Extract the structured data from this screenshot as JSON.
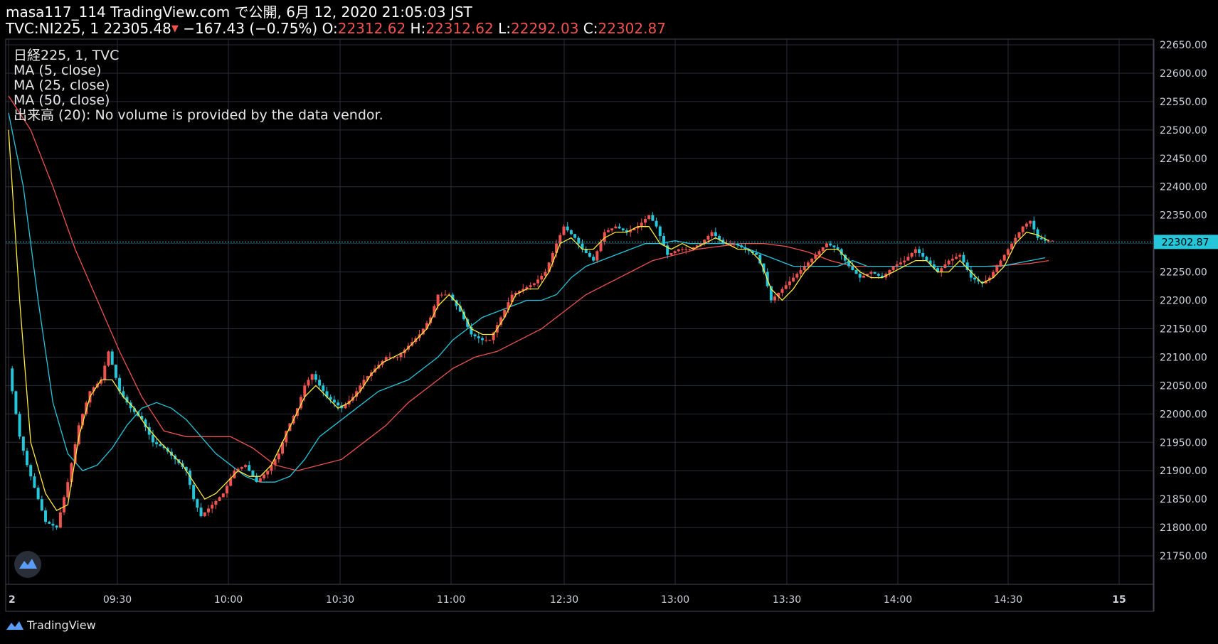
{
  "header": {
    "line1": "masa117_114 TradingView.com で公開, 6月 12, 2020 21:05:03 JST",
    "symbol": "TVC:NI225, 1",
    "price": "22305.48",
    "change": "−167.43 (−0.75%)",
    "o_label": "O:",
    "o_value": "22312.62",
    "h_label": "H:",
    "h_value": "22312.62",
    "l_label": "L:",
    "l_value": "22292.03",
    "c_label": "C:",
    "c_value": "22302.87"
  },
  "legend": {
    "line1": "日経225, 1, TVC",
    "line2": "MA (5, close)",
    "line3": "MA (25, close)",
    "line4": "MA (50, close)",
    "line5": "出来高 (20): No volume is provided by the data vendor."
  },
  "price_label": "22302.87",
  "footer": {
    "brand": "TradingView"
  },
  "colors": {
    "up": "#ef5350",
    "down": "#26c6da",
    "ma5": "#ffeb3b",
    "ma25": "#26c6da",
    "ma50": "#ef5350",
    "grid": "#2a2e39",
    "price_line": "#26c6da"
  },
  "icons": [
    "tradingview-logo-icon",
    "down-arrow-icon"
  ],
  "chart_data": {
    "type": "candlestick",
    "ylim": [
      21700,
      22660
    ],
    "yticks": [
      21750,
      21800,
      21850,
      21900,
      21950,
      22000,
      22050,
      22100,
      22150,
      22200,
      22250,
      22300,
      22350,
      22400,
      22450,
      22500,
      22550,
      22600,
      22650
    ],
    "ytick_labels": [
      "21750.00",
      "21800.00",
      "21850.00",
      "21900.00",
      "21950.00",
      "22000.00",
      "22050.00",
      "22100.00",
      "22150.00",
      "22200.00",
      "22250.00",
      "22300.00",
      "22350.00",
      "22400.00",
      "22450.00",
      "22500.00",
      "22550.00",
      "22600.00",
      "22650.00"
    ],
    "xticks": [
      {
        "label": "2",
        "minutes": 0
      },
      {
        "label": "09:30",
        "minutes": 30
      },
      {
        "label": "10:00",
        "minutes": 60
      },
      {
        "label": "10:30",
        "minutes": 90
      },
      {
        "label": "11:00",
        "minutes": 120
      },
      {
        "label": "12:30",
        "minutes": 150
      },
      {
        "label": "13:00",
        "minutes": 180
      },
      {
        "label": "13:30",
        "minutes": 210
      },
      {
        "label": "14:00",
        "minutes": 240
      },
      {
        "label": "14:30",
        "minutes": 270
      },
      {
        "label": "15",
        "minutes": 300
      }
    ],
    "close_keypoints": [
      [
        0,
        22080
      ],
      [
        3,
        21960
      ],
      [
        5,
        21910
      ],
      [
        7,
        21870
      ],
      [
        10,
        21810
      ],
      [
        13,
        21800
      ],
      [
        16,
        21880
      ],
      [
        19,
        21980
      ],
      [
        22,
        22040
      ],
      [
        25,
        22060
      ],
      [
        27,
        22110
      ],
      [
        30,
        22040
      ],
      [
        33,
        22010
      ],
      [
        36,
        21990
      ],
      [
        39,
        21950
      ],
      [
        42,
        21940
      ],
      [
        45,
        21920
      ],
      [
        48,
        21900
      ],
      [
        50,
        21850
      ],
      [
        52,
        21820
      ],
      [
        55,
        21840
      ],
      [
        58,
        21860
      ],
      [
        61,
        21900
      ],
      [
        64,
        21910
      ],
      [
        67,
        21880
      ],
      [
        70,
        21900
      ],
      [
        73,
        21930
      ],
      [
        75,
        21970
      ],
      [
        78,
        22010
      ],
      [
        80,
        22050
      ],
      [
        82,
        22070
      ],
      [
        84,
        22050
      ],
      [
        86,
        22030
      ],
      [
        88,
        22020
      ],
      [
        90,
        22010
      ],
      [
        93,
        22030
      ],
      [
        96,
        22060
      ],
      [
        99,
        22080
      ],
      [
        102,
        22100
      ],
      [
        105,
        22100
      ],
      [
        108,
        22120
      ],
      [
        111,
        22140
      ],
      [
        114,
        22170
      ],
      [
        116,
        22210
      ],
      [
        119,
        22210
      ],
      [
        122,
        22180
      ],
      [
        125,
        22140
      ],
      [
        128,
        22130
      ],
      [
        130,
        22130
      ],
      [
        133,
        22170
      ],
      [
        136,
        22210
      ],
      [
        139,
        22220
      ],
      [
        142,
        22230
      ],
      [
        145,
        22250
      ],
      [
        148,
        22300
      ],
      [
        150,
        22330
      ],
      [
        153,
        22310
      ],
      [
        155,
        22290
      ],
      [
        158,
        22270
      ],
      [
        161,
        22320
      ],
      [
        164,
        22330
      ],
      [
        167,
        22320
      ],
      [
        170,
        22330
      ],
      [
        173,
        22350
      ],
      [
        175,
        22330
      ],
      [
        178,
        22280
      ],
      [
        181,
        22290
      ],
      [
        184,
        22290
      ],
      [
        187,
        22300
      ],
      [
        190,
        22320
      ],
      [
        193,
        22300
      ],
      [
        196,
        22300
      ],
      [
        199,
        22290
      ],
      [
        202,
        22280
      ],
      [
        204,
        22250
      ],
      [
        206,
        22200
      ],
      [
        209,
        22220
      ],
      [
        212,
        22240
      ],
      [
        215,
        22260
      ],
      [
        218,
        22280
      ],
      [
        221,
        22300
      ],
      [
        224,
        22290
      ],
      [
        227,
        22260
      ],
      [
        230,
        22240
      ],
      [
        233,
        22250
      ],
      [
        236,
        22240
      ],
      [
        239,
        22260
      ],
      [
        242,
        22270
      ],
      [
        245,
        22290
      ],
      [
        248,
        22270
      ],
      [
        251,
        22250
      ],
      [
        254,
        22270
      ],
      [
        257,
        22280
      ],
      [
        260,
        22240
      ],
      [
        263,
        22230
      ],
      [
        265,
        22240
      ],
      [
        268,
        22270
      ],
      [
        271,
        22300
      ],
      [
        274,
        22330
      ],
      [
        276,
        22340
      ],
      [
        278,
        22310
      ],
      [
        280,
        22305
      ]
    ],
    "ma5_keypoints": [
      [
        0,
        22500
      ],
      [
        3,
        22200
      ],
      [
        6,
        21950
      ],
      [
        10,
        21860
      ],
      [
        13,
        21830
      ],
      [
        16,
        21840
      ],
      [
        19,
        21960
      ],
      [
        22,
        22030
      ],
      [
        25,
        22060
      ],
      [
        28,
        22060
      ],
      [
        31,
        22030
      ],
      [
        34,
        22010
      ],
      [
        37,
        21980
      ],
      [
        41,
        21950
      ],
      [
        44,
        21930
      ],
      [
        47,
        21910
      ],
      [
        50,
        21880
      ],
      [
        53,
        21850
      ],
      [
        56,
        21860
      ],
      [
        59,
        21880
      ],
      [
        62,
        21900
      ],
      [
        65,
        21890
      ],
      [
        68,
        21890
      ],
      [
        71,
        21910
      ],
      [
        74,
        21950
      ],
      [
        77,
        21990
      ],
      [
        80,
        22030
      ],
      [
        83,
        22050
      ],
      [
        86,
        22030
      ],
      [
        89,
        22010
      ],
      [
        92,
        22020
      ],
      [
        95,
        22040
      ],
      [
        98,
        22070
      ],
      [
        101,
        22090
      ],
      [
        104,
        22100
      ],
      [
        107,
        22110
      ],
      [
        110,
        22130
      ],
      [
        113,
        22150
      ],
      [
        116,
        22190
      ],
      [
        119,
        22210
      ],
      [
        122,
        22190
      ],
      [
        125,
        22150
      ],
      [
        128,
        22140
      ],
      [
        131,
        22140
      ],
      [
        134,
        22170
      ],
      [
        137,
        22210
      ],
      [
        140,
        22220
      ],
      [
        143,
        22220
      ],
      [
        146,
        22250
      ],
      [
        149,
        22300
      ],
      [
        152,
        22310
      ],
      [
        155,
        22290
      ],
      [
        158,
        22290
      ],
      [
        161,
        22310
      ],
      [
        164,
        22320
      ],
      [
        167,
        22320
      ],
      [
        170,
        22330
      ],
      [
        173,
        22330
      ],
      [
        176,
        22300
      ],
      [
        179,
        22290
      ],
      [
        182,
        22300
      ],
      [
        185,
        22290
      ],
      [
        188,
        22300
      ],
      [
        191,
        22310
      ],
      [
        194,
        22300
      ],
      [
        197,
        22290
      ],
      [
        200,
        22290
      ],
      [
        203,
        22270
      ],
      [
        206,
        22220
      ],
      [
        209,
        22200
      ],
      [
        212,
        22220
      ],
      [
        215,
        22250
      ],
      [
        218,
        22270
      ],
      [
        221,
        22290
      ],
      [
        224,
        22290
      ],
      [
        227,
        22270
      ],
      [
        230,
        22250
      ],
      [
        233,
        22240
      ],
      [
        236,
        22240
      ],
      [
        239,
        22250
      ],
      [
        242,
        22260
      ],
      [
        245,
        22270
      ],
      [
        248,
        22270
      ],
      [
        251,
        22250
      ],
      [
        254,
        22250
      ],
      [
        257,
        22270
      ],
      [
        260,
        22250
      ],
      [
        263,
        22230
      ],
      [
        266,
        22240
      ],
      [
        269,
        22260
      ],
      [
        272,
        22300
      ],
      [
        275,
        22320
      ],
      [
        278,
        22315
      ],
      [
        281,
        22305
      ]
    ],
    "ma25_keypoints": [
      [
        0,
        22530
      ],
      [
        4,
        22400
      ],
      [
        8,
        22200
      ],
      [
        12,
        22020
      ],
      [
        16,
        21930
      ],
      [
        20,
        21900
      ],
      [
        24,
        21910
      ],
      [
        28,
        21940
      ],
      [
        32,
        21980
      ],
      [
        36,
        22010
      ],
      [
        40,
        22020
      ],
      [
        44,
        22010
      ],
      [
        48,
        21990
      ],
      [
        52,
        21960
      ],
      [
        56,
        21930
      ],
      [
        60,
        21910
      ],
      [
        64,
        21890
      ],
      [
        68,
        21880
      ],
      [
        72,
        21880
      ],
      [
        76,
        21890
      ],
      [
        80,
        21920
      ],
      [
        84,
        21960
      ],
      [
        88,
        21980
      ],
      [
        92,
        22000
      ],
      [
        96,
        22020
      ],
      [
        100,
        22040
      ],
      [
        104,
        22050
      ],
      [
        108,
        22060
      ],
      [
        112,
        22080
      ],
      [
        116,
        22100
      ],
      [
        120,
        22130
      ],
      [
        124,
        22150
      ],
      [
        128,
        22170
      ],
      [
        132,
        22180
      ],
      [
        136,
        22190
      ],
      [
        140,
        22200
      ],
      [
        144,
        22200
      ],
      [
        148,
        22210
      ],
      [
        152,
        22240
      ],
      [
        156,
        22260
      ],
      [
        160,
        22270
      ],
      [
        164,
        22280
      ],
      [
        168,
        22290
      ],
      [
        172,
        22300
      ],
      [
        176,
        22300
      ],
      [
        180,
        22305
      ],
      [
        184,
        22300
      ],
      [
        188,
        22300
      ],
      [
        192,
        22300
      ],
      [
        196,
        22300
      ],
      [
        200,
        22290
      ],
      [
        204,
        22280
      ],
      [
        208,
        22270
      ],
      [
        212,
        22260
      ],
      [
        216,
        22260
      ],
      [
        220,
        22260
      ],
      [
        224,
        22260
      ],
      [
        228,
        22270
      ],
      [
        232,
        22260
      ],
      [
        236,
        22260
      ],
      [
        240,
        22260
      ],
      [
        244,
        22260
      ],
      [
        248,
        22260
      ],
      [
        252,
        22260
      ],
      [
        256,
        22260
      ],
      [
        260,
        22260
      ],
      [
        264,
        22260
      ],
      [
        268,
        22260
      ],
      [
        272,
        22265
      ],
      [
        276,
        22270
      ],
      [
        280,
        22275
      ]
    ],
    "ma50_keypoints": [
      [
        0,
        22560
      ],
      [
        6,
        22500
      ],
      [
        12,
        22400
      ],
      [
        18,
        22290
      ],
      [
        24,
        22200
      ],
      [
        30,
        22110
      ],
      [
        36,
        22030
      ],
      [
        42,
        21970
      ],
      [
        48,
        21960
      ],
      [
        54,
        21960
      ],
      [
        60,
        21960
      ],
      [
        66,
        21940
      ],
      [
        72,
        21910
      ],
      [
        78,
        21900
      ],
      [
        84,
        21910
      ],
      [
        90,
        21920
      ],
      [
        96,
        21950
      ],
      [
        102,
        21980
      ],
      [
        108,
        22020
      ],
      [
        114,
        22050
      ],
      [
        120,
        22080
      ],
      [
        126,
        22100
      ],
      [
        132,
        22110
      ],
      [
        138,
        22130
      ],
      [
        144,
        22150
      ],
      [
        150,
        22180
      ],
      [
        156,
        22210
      ],
      [
        162,
        22230
      ],
      [
        168,
        22250
      ],
      [
        174,
        22270
      ],
      [
        180,
        22280
      ],
      [
        186,
        22290
      ],
      [
        192,
        22295
      ],
      [
        198,
        22300
      ],
      [
        204,
        22300
      ],
      [
        210,
        22295
      ],
      [
        216,
        22285
      ],
      [
        222,
        22270
      ],
      [
        228,
        22260
      ],
      [
        234,
        22260
      ],
      [
        240,
        22260
      ],
      [
        246,
        22260
      ],
      [
        252,
        22260
      ],
      [
        258,
        22260
      ],
      [
        264,
        22260
      ],
      [
        270,
        22262
      ],
      [
        276,
        22265
      ],
      [
        281,
        22270
      ]
    ],
    "minutes_total": 282
  }
}
